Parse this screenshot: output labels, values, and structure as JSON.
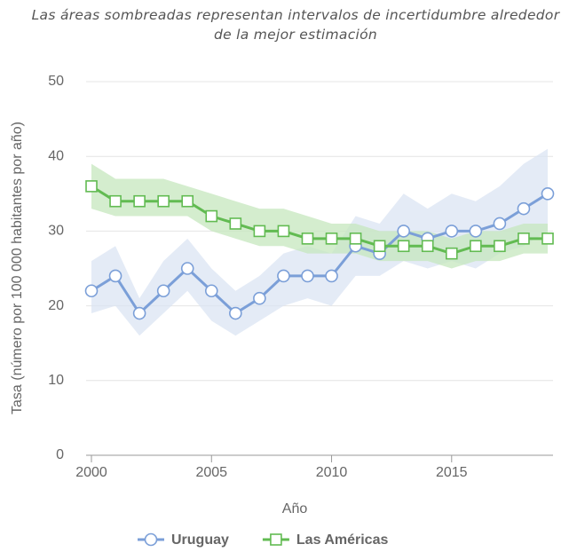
{
  "chart_data": {
    "type": "line",
    "title": "Las áreas sombreadas representan intervalos de incertidumbre alrededor de la mejor estimación",
    "xlabel": "Año",
    "ylabel": "Tasa (número por 100 000 habitantes por año)",
    "x": [
      2000,
      2001,
      2002,
      2003,
      2004,
      2005,
      2006,
      2007,
      2008,
      2009,
      2010,
      2011,
      2012,
      2013,
      2014,
      2015,
      2016,
      2017,
      2018,
      2019
    ],
    "series": [
      {
        "name": "Uruguay",
        "color": "#7b9fd8",
        "band_color": "#dbe4f3",
        "marker": "circle",
        "values": [
          22,
          24,
          19,
          22,
          25,
          22,
          19,
          21,
          24,
          24,
          24,
          28,
          27,
          30,
          29,
          30,
          30,
          31,
          33,
          35
        ],
        "lower": [
          19,
          20,
          16,
          19,
          22,
          18,
          16,
          18,
          20,
          21,
          20,
          24,
          24,
          26,
          25,
          26,
          25,
          27,
          28,
          30
        ],
        "upper": [
          26,
          28,
          21,
          26,
          29,
          25,
          22,
          24,
          27,
          28,
          27,
          32,
          31,
          35,
          33,
          35,
          34,
          36,
          39,
          41
        ]
      },
      {
        "name": "Las Américas",
        "color": "#62bb52",
        "band_color": "#c6e7bd",
        "marker": "square",
        "values": [
          36,
          34,
          34,
          34,
          34,
          32,
          31,
          30,
          30,
          29,
          29,
          29,
          28,
          28,
          28,
          27,
          28,
          28,
          29,
          29
        ],
        "lower": [
          33,
          32,
          32,
          32,
          32,
          30,
          29,
          28,
          28,
          27,
          27,
          27,
          26,
          26,
          26,
          25,
          26,
          26,
          27,
          27
        ],
        "upper": [
          39,
          37,
          37,
          37,
          36,
          35,
          34,
          33,
          33,
          32,
          31,
          31,
          30,
          30,
          30,
          29,
          30,
          30,
          31,
          31
        ]
      }
    ],
    "xlim": [
      2000,
      2019
    ],
    "xticks": [
      2000,
      2005,
      2010,
      2015
    ],
    "ylim": [
      0,
      50
    ],
    "yticks": [
      0,
      10,
      20,
      30,
      40,
      50
    ],
    "grid": true,
    "legend": "bottom"
  }
}
